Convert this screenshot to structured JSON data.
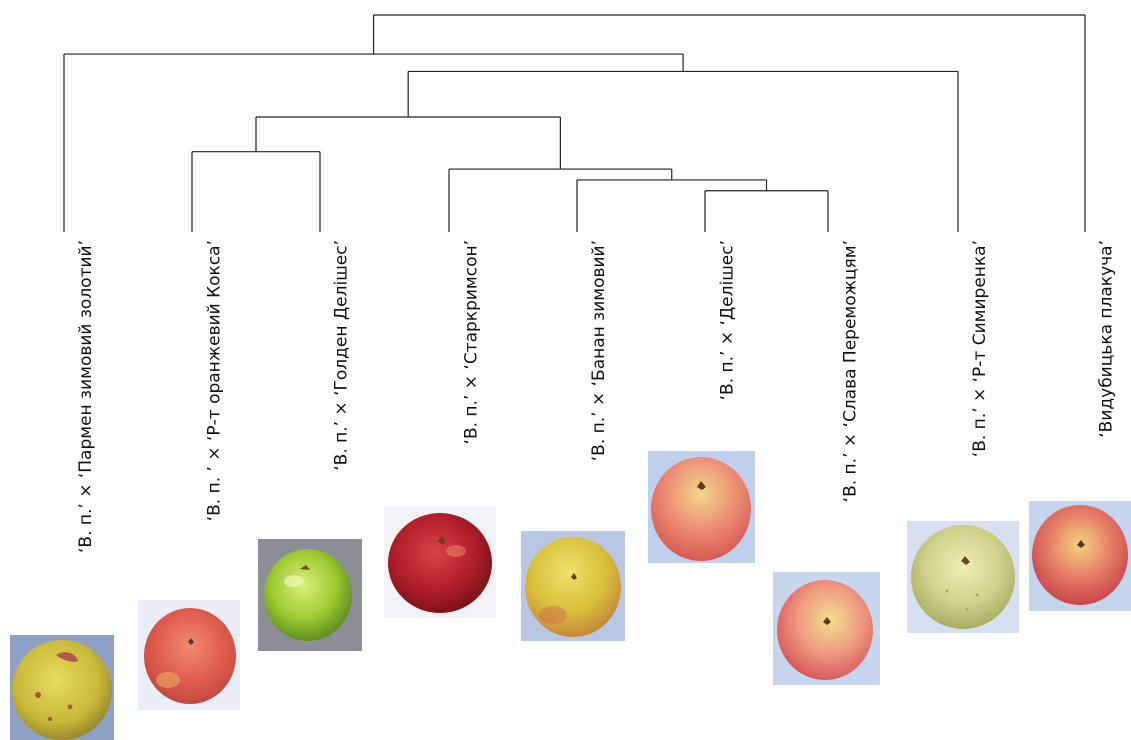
{
  "leaves": [
    {
      "label": "‘В. п.’ × ‘Пармен зимовий золотий’",
      "photo": "apple-yellow-spotted"
    },
    {
      "label": "‘В. п. ’ × ‘Р-т оранжевий Кокса’",
      "photo": "apple-red-orange"
    },
    {
      "label": "‘В. п.’ × ‘Голден Делішес’",
      "photo": "apple-green"
    },
    {
      "label": "‘В. п.’ × ‘Старкримсон’",
      "photo": "apple-deep-red"
    },
    {
      "label": "‘В. п.’ × ‘Банан зимовий’",
      "photo": "apple-yellow-blush"
    },
    {
      "label": "‘В. п.’ × ‘Делішес’",
      "photo": "apple-pink-striped"
    },
    {
      "label": "‘В. п.’ × ‘Слава Переможцям’",
      "photo": "apple-pink-yellow"
    },
    {
      "label": "‘В. п.’ × ‘Р-т Симиренка’",
      "photo": "apple-pale-green"
    },
    {
      "label": "‘Видубицька плакуча’",
      "photo": "apple-red-yellow"
    }
  ],
  "merges": [
    {
      "a": 5,
      "b": 6,
      "height": 0.81
    },
    {
      "a": 4,
      "b": "m0",
      "height": 0.76
    },
    {
      "a": 3,
      "b": "m1",
      "height": 0.71
    },
    {
      "a": 1,
      "b": 2,
      "height": 0.63
    },
    {
      "a": "m3",
      "b": "m2",
      "height": 0.47
    },
    {
      "a": "m4",
      "b": 7,
      "height": 0.26
    },
    {
      "a": 0,
      "b": "m5",
      "height": 0.18
    },
    {
      "a": "m6",
      "b": 8,
      "height": 0.0
    }
  ],
  "colors": {
    "line": "#222222",
    "text": "#111111"
  }
}
